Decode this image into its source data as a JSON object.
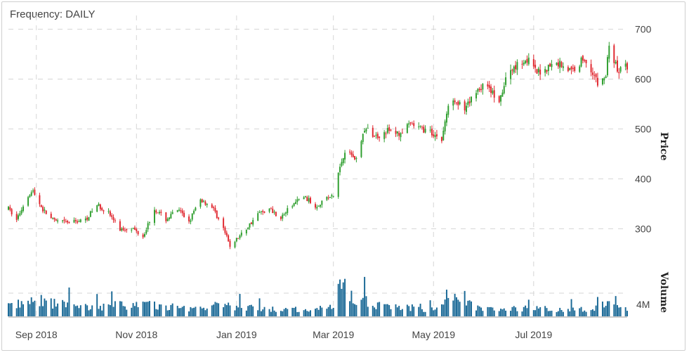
{
  "header": {
    "frequency_label": "Frequency: DAILY"
  },
  "colors": {
    "up": "#2e9e2e",
    "down": "#e0262e",
    "volume": "#1a6996",
    "grid": "#d6d6d6",
    "text": "#444444"
  },
  "chart_data": {
    "type": "candlestick",
    "frequency": "DAILY",
    "x_range": [
      "2018-08-15",
      "2019-08-27"
    ],
    "x_ticks": [
      {
        "date": "2018-09-01",
        "label": "Sep 2018"
      },
      {
        "date": "2018-11-01",
        "label": "Nov 2018"
      },
      {
        "date": "2019-01-01",
        "label": "Jan 2019"
      },
      {
        "date": "2019-03-01",
        "label": "Mar 2019"
      },
      {
        "date": "2019-05-01",
        "label": "May 2019"
      },
      {
        "date": "2019-07-01",
        "label": "Jul 2019"
      }
    ],
    "price_axis": {
      "title": "Price",
      "ylim": [
        230,
        712
      ],
      "ticks": [
        300,
        400,
        500,
        600,
        700
      ],
      "tick_labels": [
        "300",
        "400",
        "500",
        "600",
        "700"
      ]
    },
    "volume_axis": {
      "title": "Volume",
      "ylim": [
        0,
        8000000
      ],
      "ticks": [
        4000000
      ],
      "tick_labels": [
        "4M"
      ]
    },
    "grid": true,
    "price_anchors": [
      [
        "2018-08-15",
        340
      ],
      [
        "2018-08-20",
        318
      ],
      [
        "2018-08-27",
        368
      ],
      [
        "2018-08-30",
        375
      ],
      [
        "2018-09-05",
        338
      ],
      [
        "2018-09-12",
        315
      ],
      [
        "2018-09-20",
        312
      ],
      [
        "2018-10-01",
        318
      ],
      [
        "2018-10-08",
        348
      ],
      [
        "2018-10-15",
        332
      ],
      [
        "2018-10-22",
        298
      ],
      [
        "2018-10-29",
        302
      ],
      [
        "2018-11-05",
        285
      ],
      [
        "2018-11-12",
        340
      ],
      [
        "2018-11-19",
        318
      ],
      [
        "2018-11-26",
        338
      ],
      [
        "2018-12-03",
        315
      ],
      [
        "2018-12-10",
        358
      ],
      [
        "2018-12-17",
        345
      ],
      [
        "2018-12-24",
        300
      ],
      [
        "2018-12-28",
        265
      ],
      [
        "2019-01-07",
        300
      ],
      [
        "2019-01-14",
        330
      ],
      [
        "2019-01-21",
        340
      ],
      [
        "2019-01-28",
        322
      ],
      [
        "2019-02-04",
        348
      ],
      [
        "2019-02-11",
        365
      ],
      [
        "2019-02-18",
        345
      ],
      [
        "2019-02-25",
        362
      ],
      [
        "2019-03-01",
        365
      ],
      [
        "2019-03-04",
        412
      ],
      [
        "2019-03-08",
        458
      ],
      [
        "2019-03-15",
        440
      ],
      [
        "2019-03-20",
        500
      ],
      [
        "2019-03-27",
        485
      ],
      [
        "2019-04-03",
        497
      ],
      [
        "2019-04-10",
        490
      ],
      [
        "2019-04-17",
        508
      ],
      [
        "2019-04-24",
        500
      ],
      [
        "2019-05-01",
        490
      ],
      [
        "2019-05-06",
        478
      ],
      [
        "2019-05-09",
        532
      ],
      [
        "2019-05-13",
        565
      ],
      [
        "2019-05-20",
        535
      ],
      [
        "2019-05-27",
        578
      ],
      [
        "2019-06-03",
        590
      ],
      [
        "2019-06-10",
        548
      ],
      [
        "2019-06-14",
        600
      ],
      [
        "2019-06-20",
        628
      ],
      [
        "2019-06-27",
        640
      ],
      [
        "2019-07-03",
        612
      ],
      [
        "2019-07-10",
        625
      ],
      [
        "2019-07-17",
        632
      ],
      [
        "2019-07-24",
        615
      ],
      [
        "2019-07-31",
        640
      ],
      [
        "2019-08-05",
        622
      ],
      [
        "2019-08-09",
        590
      ],
      [
        "2019-08-14",
        605
      ],
      [
        "2019-08-16",
        672
      ],
      [
        "2019-08-21",
        615
      ],
      [
        "2019-08-26",
        625
      ]
    ],
    "volume_anchors": [
      [
        "2018-08-15",
        1800000
      ],
      [
        "2018-09-03",
        2500000
      ],
      [
        "2018-10-01",
        1500000
      ],
      [
        "2018-11-01",
        2000000
      ],
      [
        "2018-12-01",
        1300000
      ],
      [
        "2018-12-24",
        1800000
      ],
      [
        "2019-01-15",
        1200000
      ],
      [
        "2019-02-15",
        1100000
      ],
      [
        "2019-03-01",
        1400000
      ],
      [
        "2019-03-04",
        5500000
      ],
      [
        "2019-03-20",
        2000000
      ],
      [
        "2019-04-15",
        1500000
      ],
      [
        "2019-05-01",
        1000000
      ],
      [
        "2019-05-09",
        3000000
      ],
      [
        "2019-06-01",
        1300000
      ],
      [
        "2019-07-01",
        1200000
      ],
      [
        "2019-08-01",
        1100000
      ],
      [
        "2019-08-16",
        2000000
      ],
      [
        "2019-08-27",
        1300000
      ]
    ],
    "volume_spikes": [
      [
        "2019-03-04",
        5600000
      ],
      [
        "2019-03-20",
        6800000
      ],
      [
        "2019-05-09",
        4600000
      ],
      [
        "2018-09-10",
        3100000
      ],
      [
        "2019-08-20",
        3500000
      ]
    ]
  }
}
